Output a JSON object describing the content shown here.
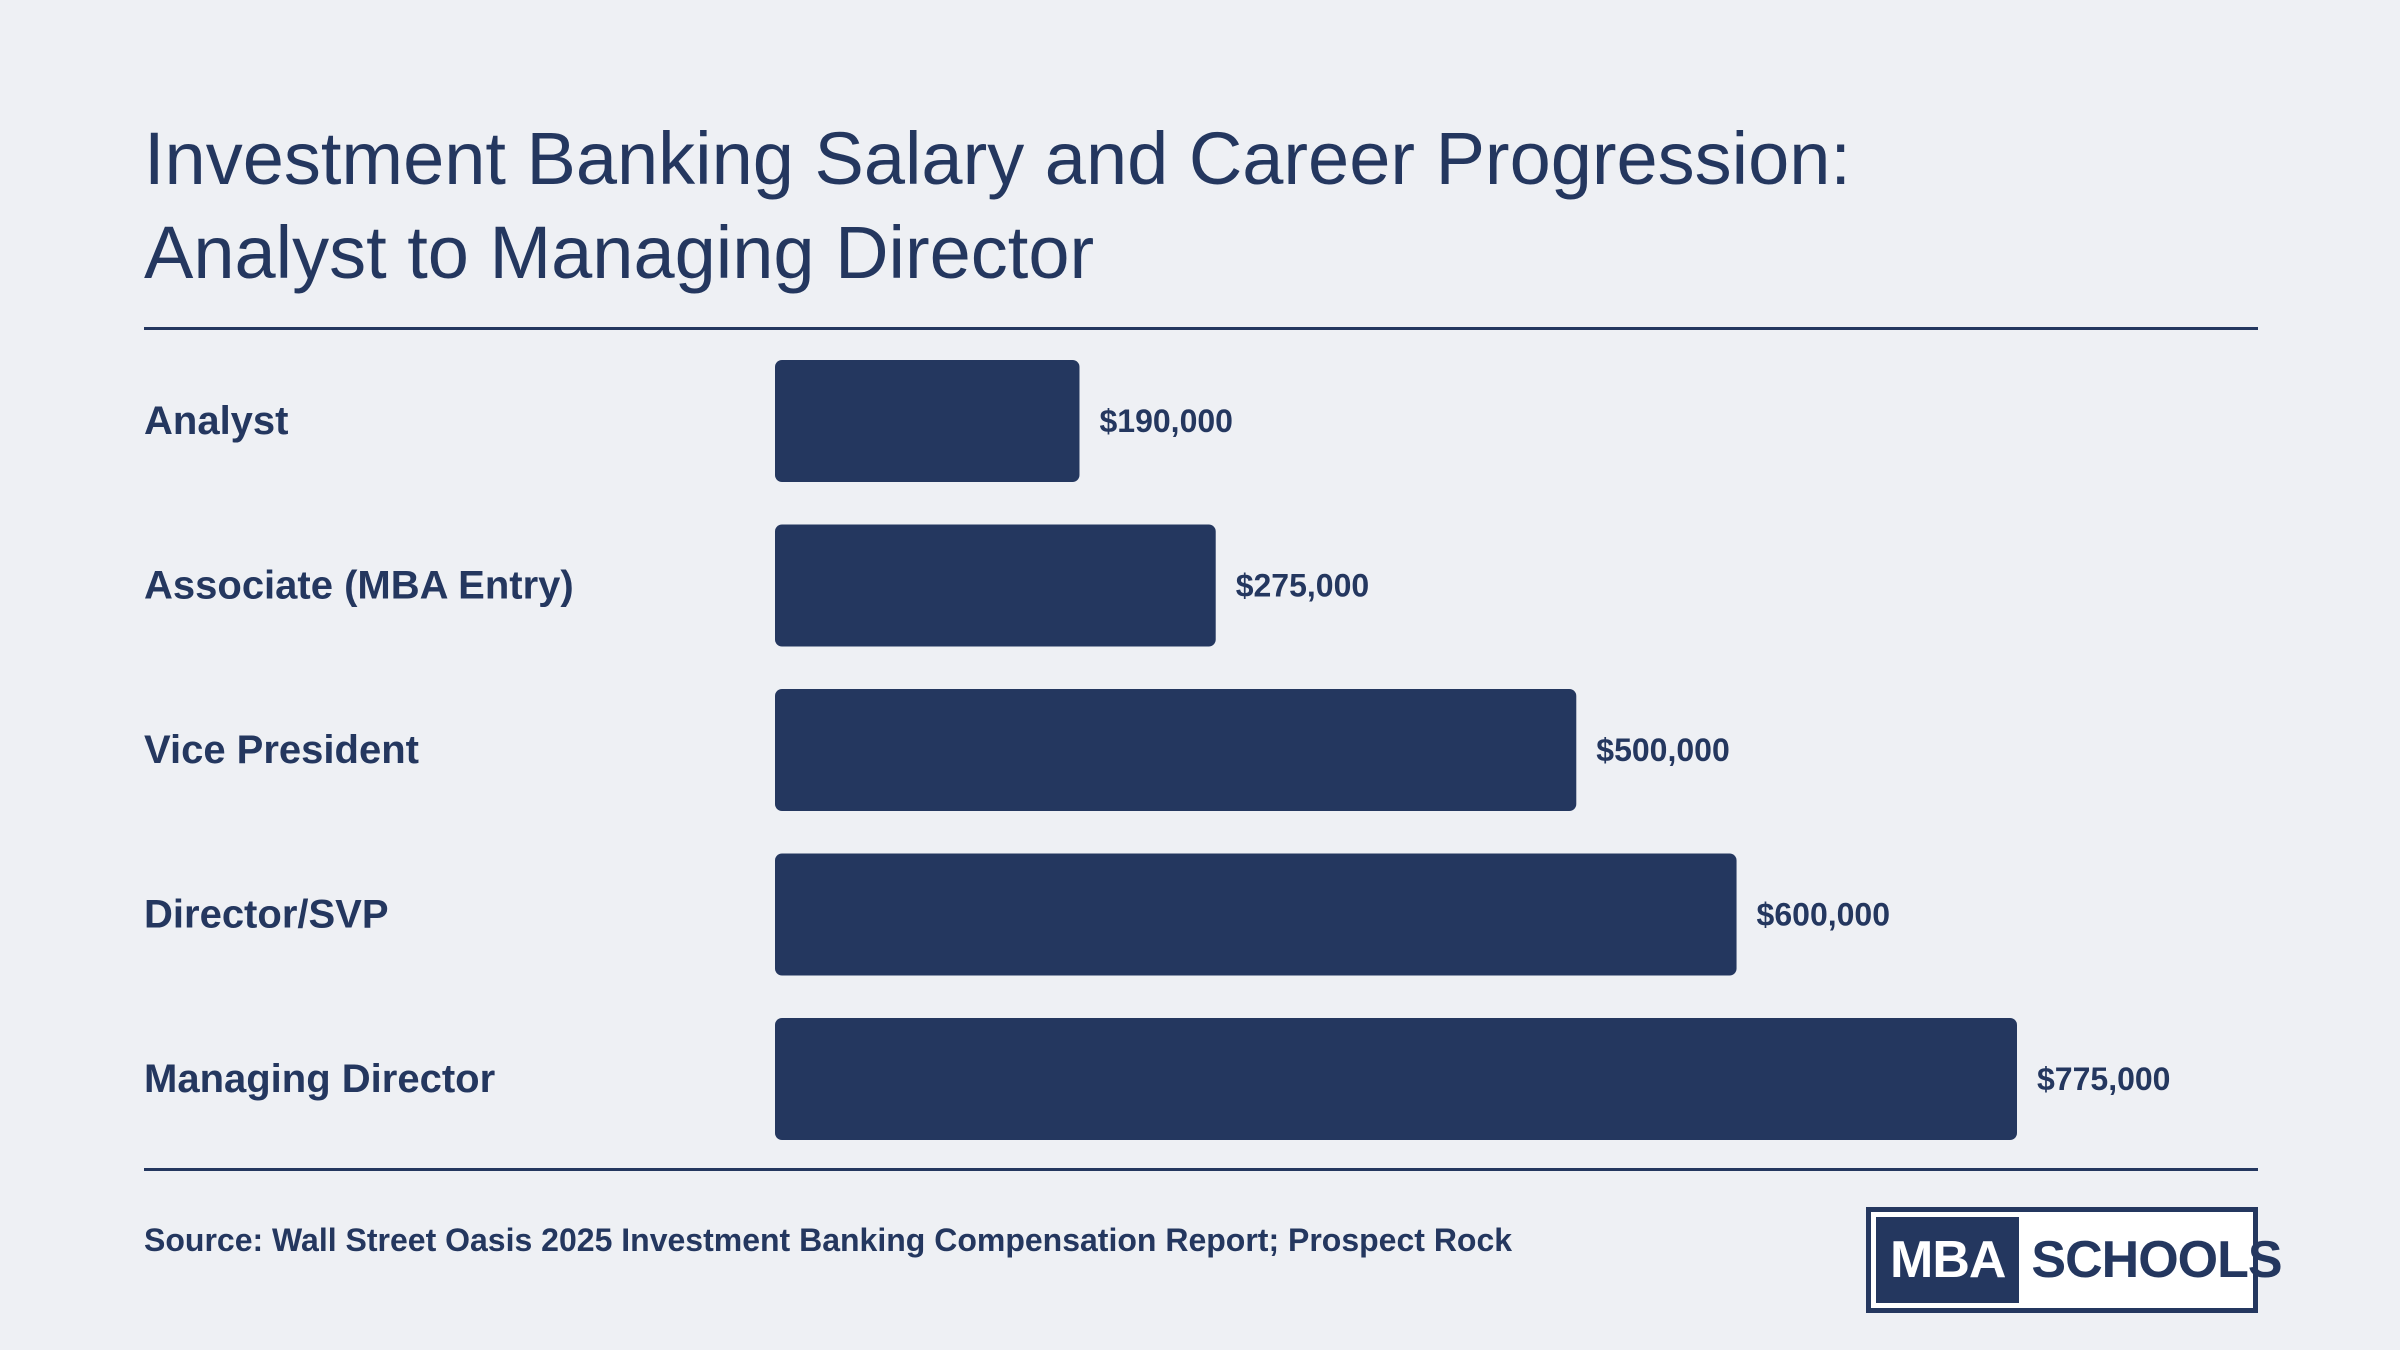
{
  "title": {
    "line1": "Investment Banking Salary and Career Progression:",
    "line2": "Analyst to Managing Director"
  },
  "source": "Source: Wall Street Oasis 2025 Investment Banking Compensation Report; Prospect Rock",
  "logo": {
    "left": "MBA",
    "right": "SCHOOLS"
  },
  "colors": {
    "background": "#eef0f4",
    "bar": "#24375f",
    "text": "#24375f"
  },
  "chart_data": {
    "type": "bar",
    "orientation": "horizontal",
    "title": "Investment Banking Salary and Career Progression: Analyst to Managing Director",
    "xlabel": "",
    "ylabel": "",
    "grid": false,
    "xlim": [
      0,
      775000
    ],
    "categories": [
      "Analyst",
      "Associate (MBA Entry)",
      "Vice President",
      "Director/SVP",
      "Managing Director"
    ],
    "values": [
      190000,
      275000,
      500000,
      600000,
      775000
    ],
    "value_labels": [
      "$190,000",
      "$275,000",
      "$500,000",
      "$600,000",
      "$775,000"
    ]
  }
}
